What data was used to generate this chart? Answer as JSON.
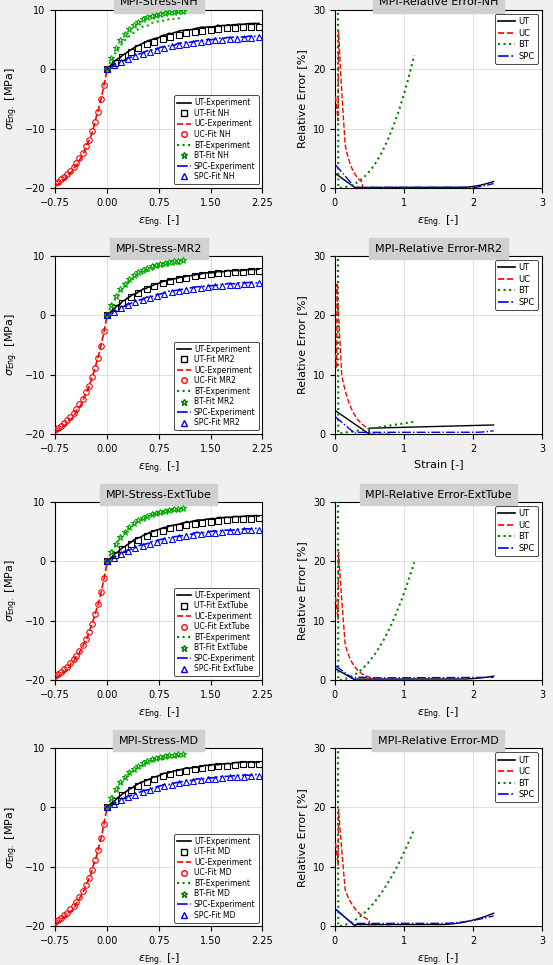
{
  "rows": 4,
  "cols": 2,
  "titles_left": [
    "MPI-Stress-NH",
    "MPI-Stress-MR2",
    "MPI-Stress-ExtTube",
    "MPI-Stress-MD"
  ],
  "titles_right": [
    "MPI-Relative Error-NH",
    "MPI-Relative Error-MR2",
    "MPI-Relative Error-ExtTube",
    "MPI-Relative Error-MD"
  ],
  "fit_labels": [
    "NH",
    "MR2",
    "ExtTube",
    "MD"
  ],
  "ylabel_left": "σ_Eng. [MPa]",
  "ylabel_right": "Relative Error [%]",
  "xlabel_left": "ε_Eng. [-]",
  "xlabel_right_default": "ε_Eng. [-]",
  "xlabel_right_mr2": "Strain [-]",
  "xlim_left": [
    -0.75,
    2.25
  ],
  "ylim_left": [
    -20,
    10
  ],
  "xlim_right": [
    0,
    3
  ],
  "ylim_right": [
    0,
    30
  ],
  "xticks_left": [
    -0.75,
    0.0,
    0.75,
    1.5,
    2.25
  ],
  "yticks_left": [
    -20,
    -10,
    0,
    10
  ],
  "xticks_right": [
    0,
    1,
    2,
    3
  ],
  "yticks_right": [
    0,
    10,
    20,
    30
  ],
  "colors": {
    "UT_exp": "#000000",
    "UC_exp": "#ff0000",
    "BT_exp": "#00aa00",
    "SPC_exp": "#0000ff",
    "UT_fit": "#000000",
    "UC_fit": "#ff0000",
    "BT_fit": "#00aa00",
    "SPC_fit": "#0000ff"
  }
}
